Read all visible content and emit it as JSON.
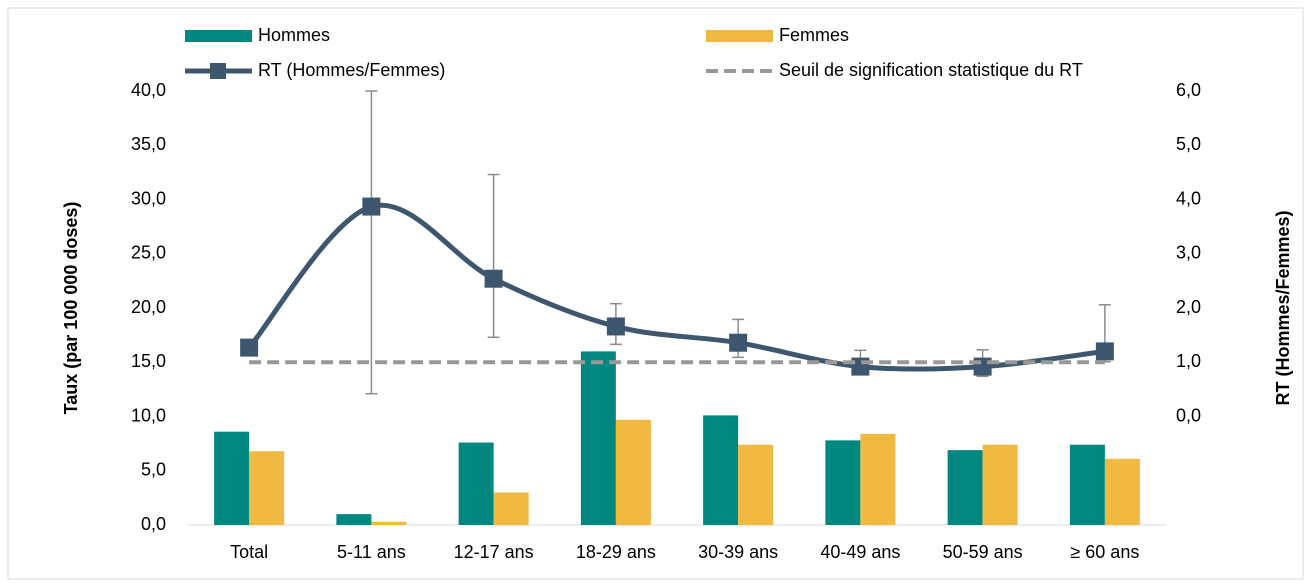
{
  "chart_data": {
    "type": "bar",
    "y_label": "Taux (par 100 000 doses)",
    "y2_label": "RT (Hommes/Femmes)",
    "categories": [
      "Total",
      "5-11 ans",
      "12-17 ans",
      "18-29 ans",
      "30-39 ans",
      "40-49 ans",
      "50-59 ans",
      "≥ 60 ans"
    ],
    "ylim": [
      0,
      40
    ],
    "yticks": [
      {
        "value": 0,
        "label": "0,0"
      },
      {
        "value": 5,
        "label": "5,0"
      },
      {
        "value": 10,
        "label": "10,0"
      },
      {
        "value": 15,
        "label": "15,0"
      },
      {
        "value": 20,
        "label": "20,0"
      },
      {
        "value": 25,
        "label": "25,0"
      },
      {
        "value": 30,
        "label": "30,0"
      },
      {
        "value": 35,
        "label": "35,0"
      },
      {
        "value": 40,
        "label": "40,0"
      }
    ],
    "y2lim": [
      -2,
      6
    ],
    "y2ticks": [
      {
        "value": 0,
        "label": "0,0"
      },
      {
        "value": 1,
        "label": "1,0"
      },
      {
        "value": 2,
        "label": "2,0"
      },
      {
        "value": 3,
        "label": "3,0"
      },
      {
        "value": 4,
        "label": "4,0"
      },
      {
        "value": 5,
        "label": "5,0"
      },
      {
        "value": 6,
        "label": "6,0"
      }
    ],
    "series": [
      {
        "name": "Hommes",
        "type": "bar",
        "color": "#00877f",
        "values": [
          8.6,
          1.0,
          7.6,
          16.0,
          10.1,
          7.8,
          6.9,
          7.4
        ]
      },
      {
        "name": "Femmes",
        "type": "bar",
        "color": "#f0b942",
        "values": [
          6.8,
          0.3,
          3.0,
          9.7,
          7.4,
          8.4,
          7.4,
          6.1
        ]
      },
      {
        "name": "RT (Hommes/Femmes)",
        "type": "line",
        "axis": "y2",
        "color": "#3e566e",
        "smooth": true,
        "markers": true,
        "values": [
          1.27,
          3.87,
          2.54,
          1.66,
          1.36,
          0.92,
          0.92,
          1.2
        ],
        "error_low": [
          null,
          0.42,
          1.46,
          1.33,
          1.09,
          0.81,
          0.74,
          1.01
        ],
        "error_high": [
          null,
          6.0,
          4.46,
          2.08,
          1.79,
          1.22,
          1.23,
          2.06
        ]
      },
      {
        "name": "Seuil de signification statistique du RT",
        "type": "line",
        "axis": "y2",
        "color": "#999999",
        "dashed": true,
        "values": [
          1,
          1,
          1,
          1,
          1,
          1,
          1,
          1
        ]
      }
    ]
  }
}
